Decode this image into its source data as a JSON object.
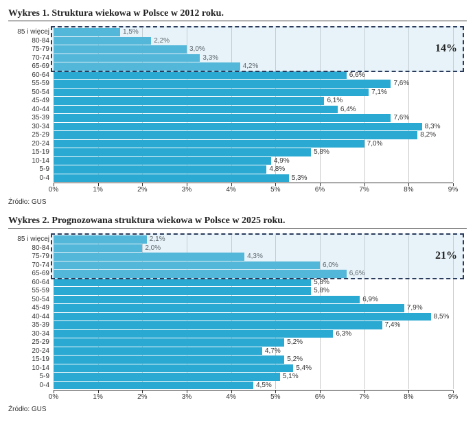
{
  "charts": [
    {
      "title": "Wykres 1. Struktura wiekowa w Polsce w 2012 roku.",
      "source": "Źródło: GUS",
      "xmax": 9,
      "xtick_step": 1,
      "bar_color": "#2aa9d2",
      "grid_color": "#c9c9c9",
      "label_fontsize": 10,
      "highlight": {
        "from_index": 0,
        "to_index": 4,
        "label": "14%"
      },
      "rows": [
        {
          "label": "85 i więcej",
          "value": 1.5,
          "text": "1,5%"
        },
        {
          "label": "80-84",
          "value": 2.2,
          "text": "2,2%"
        },
        {
          "label": "75-79",
          "value": 3.0,
          "text": "3,0%"
        },
        {
          "label": "70-74",
          "value": 3.3,
          "text": "3,3%"
        },
        {
          "label": "65-69",
          "value": 4.2,
          "text": "4,2%"
        },
        {
          "label": "60-64",
          "value": 6.6,
          "text": "6,6%"
        },
        {
          "label": "55-59",
          "value": 7.6,
          "text": "7,6%"
        },
        {
          "label": "50-54",
          "value": 7.1,
          "text": "7,1%"
        },
        {
          "label": "45-49",
          "value": 6.1,
          "text": "6,1%"
        },
        {
          "label": "40-44",
          "value": 6.4,
          "text": "6,4%"
        },
        {
          "label": "35-39",
          "value": 7.6,
          "text": "7,6%"
        },
        {
          "label": "30-34",
          "value": 8.3,
          "text": "8,3%"
        },
        {
          "label": "25-29",
          "value": 8.2,
          "text": "8,2%"
        },
        {
          "label": "20-24",
          "value": 7.0,
          "text": "7,0%"
        },
        {
          "label": "15-19",
          "value": 5.8,
          "text": "5,8%"
        },
        {
          "label": "10-14",
          "value": 4.9,
          "text": "4,9%"
        },
        {
          "label": "5-9",
          "value": 4.8,
          "text": "4,8%"
        },
        {
          "label": "0-4",
          "value": 5.3,
          "text": "5,3%"
        }
      ]
    },
    {
      "title": "Wykres 2. Prognozowana struktura wiekowa w Polsce w 2025 roku.",
      "source": "Źródło: GUS",
      "xmax": 9,
      "xtick_step": 1,
      "bar_color": "#2aa9d2",
      "grid_color": "#c9c9c9",
      "label_fontsize": 10,
      "highlight": {
        "from_index": 0,
        "to_index": 4,
        "label": "21%"
      },
      "rows": [
        {
          "label": "85 i więcej",
          "value": 2.1,
          "text": "2,1%"
        },
        {
          "label": "80-84",
          "value": 2.0,
          "text": "2,0%"
        },
        {
          "label": "75-79",
          "value": 4.3,
          "text": "4,3%"
        },
        {
          "label": "70-74",
          "value": 6.0,
          "text": "6,0%"
        },
        {
          "label": "65-69",
          "value": 6.6,
          "text": "6,6%"
        },
        {
          "label": "60-64",
          "value": 5.8,
          "text": "5,8%"
        },
        {
          "label": "55-59",
          "value": 5.8,
          "text": "5,8%"
        },
        {
          "label": "50-54",
          "value": 6.9,
          "text": "6,9%"
        },
        {
          "label": "45-49",
          "value": 7.9,
          "text": "7,9%"
        },
        {
          "label": "40-44",
          "value": 8.5,
          "text": "8,5%"
        },
        {
          "label": "35-39",
          "value": 7.4,
          "text": "7,4%"
        },
        {
          "label": "30-34",
          "value": 6.3,
          "text": "6,3%"
        },
        {
          "label": "25-29",
          "value": 5.2,
          "text": "5,2%"
        },
        {
          "label": "20-24",
          "value": 4.7,
          "text": "4,7%"
        },
        {
          "label": "15-19",
          "value": 5.2,
          "text": "5,2%"
        },
        {
          "label": "10-14",
          "value": 5.4,
          "text": "5,4%"
        },
        {
          "label": "5-9",
          "value": 5.1,
          "text": "5,1%"
        },
        {
          "label": "0-4",
          "value": 4.5,
          "text": "4,5%"
        }
      ]
    }
  ]
}
